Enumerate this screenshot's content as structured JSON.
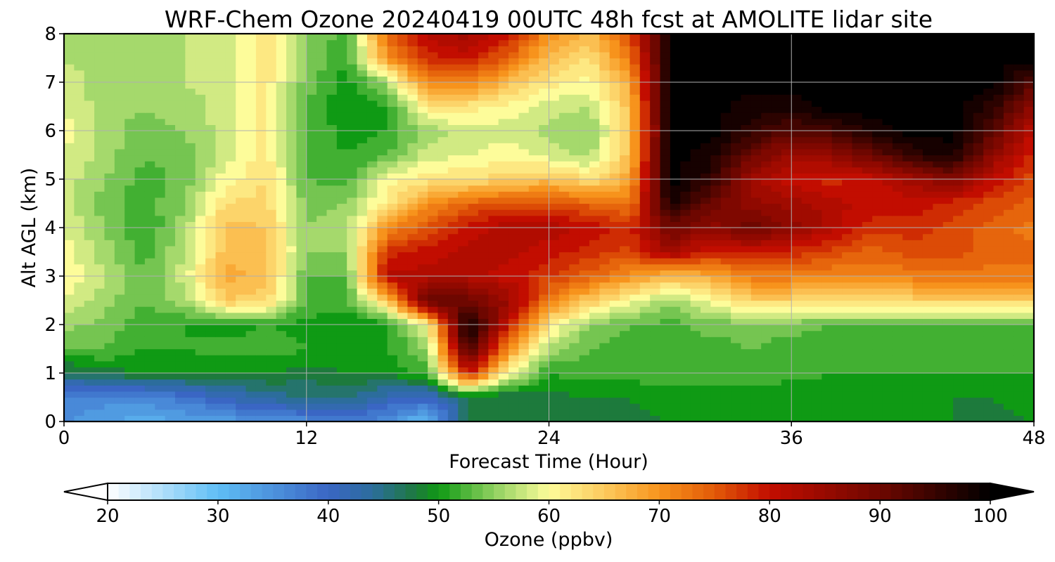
{
  "chart_data": {
    "type": "heatmap",
    "title": "WRF-Chem Ozone  20240419 00UTC 48h fcst at AMOLITE lidar site",
    "xlabel": "Forecast Time (Hour)",
    "ylabel": "Alt AGL (km)",
    "xlim": [
      0,
      48
    ],
    "ylim": [
      0,
      8
    ],
    "xticks": [
      "0",
      "12",
      "24",
      "36",
      "48"
    ],
    "yticks": [
      "0",
      "1",
      "2",
      "3",
      "4",
      "5",
      "6",
      "7",
      "8"
    ],
    "grid": true,
    "z_unit": "ppbv",
    "x": [
      0,
      2,
      4,
      6,
      8,
      10,
      12,
      14,
      16,
      18,
      20,
      22,
      24,
      26,
      28,
      30,
      32,
      34,
      36,
      38,
      40,
      42,
      44,
      46,
      48
    ],
    "y": [
      0.0,
      0.5,
      1.0,
      1.5,
      2.0,
      2.5,
      3.0,
      3.5,
      4.0,
      4.5,
      5.0,
      5.5,
      6.0,
      6.5,
      7.0,
      7.5,
      8.0
    ],
    "z": [
      [
        35,
        33,
        32,
        33,
        34,
        34,
        36,
        38,
        35,
        30,
        47,
        47,
        47,
        48,
        48,
        49,
        50,
        50,
        49,
        49,
        49,
        49,
        49,
        48,
        49
      ],
      [
        37,
        36,
        36,
        38,
        41,
        44,
        45,
        45,
        42,
        40,
        47,
        47,
        48,
        49,
        49,
        50,
        50,
        50,
        49,
        50,
        50,
        50,
        49,
        49,
        50
      ],
      [
        46,
        48,
        49,
        49,
        49,
        49,
        48,
        49,
        49,
        52,
        80,
        60,
        51,
        52,
        52,
        52,
        52,
        52,
        52,
        51,
        51,
        51,
        51,
        51,
        51
      ],
      [
        53,
        53,
        51,
        51,
        52,
        52,
        51,
        50,
        51,
        55,
        95,
        70,
        56,
        53,
        52,
        51,
        52,
        53,
        52,
        51,
        51,
        51,
        51,
        51,
        51
      ],
      [
        56,
        54,
        52,
        51,
        50,
        51,
        50,
        49,
        50,
        60,
        100,
        80,
        62,
        55,
        53,
        52,
        54,
        54,
        54,
        53,
        53,
        53,
        53,
        53,
        53
      ],
      [
        59,
        56,
        53,
        56,
        65,
        64,
        53,
        52,
        65,
        92,
        90,
        85,
        72,
        65,
        60,
        56,
        60,
        64,
        64,
        64,
        64,
        64,
        64,
        64,
        64
      ],
      [
        61,
        57,
        53,
        58,
        68,
        66,
        53,
        53,
        82,
        82,
        82,
        80,
        77,
        74,
        70,
        66,
        68,
        72,
        72,
        71,
        71,
        72,
        72,
        72,
        72
      ],
      [
        60,
        56,
        52,
        57,
        66,
        66,
        55,
        55,
        78,
        80,
        82,
        82,
        80,
        78,
        76,
        84,
        78,
        80,
        78,
        76,
        74,
        76,
        76,
        74,
        74
      ],
      [
        59,
        55,
        51,
        56,
        66,
        65,
        55,
        56,
        70,
        76,
        80,
        82,
        82,
        80,
        78,
        90,
        86,
        90,
        86,
        82,
        78,
        78,
        76,
        74,
        72
      ],
      [
        58,
        54,
        52,
        55,
        63,
        64,
        54,
        55,
        62,
        70,
        74,
        76,
        76,
        74,
        72,
        98,
        90,
        86,
        84,
        82,
        80,
        80,
        78,
        76,
        74
      ],
      [
        58,
        55,
        52,
        54,
        60,
        63,
        53,
        52,
        60,
        62,
        63,
        64,
        66,
        63,
        68,
        100,
        96,
        84,
        80,
        78,
        80,
        84,
        88,
        80,
        76
      ],
      [
        59,
        56,
        53,
        54,
        58,
        62,
        53,
        51,
        53,
        58,
        59,
        60,
        58,
        56,
        66,
        100,
        98,
        90,
        84,
        86,
        90,
        96,
        98,
        86,
        78
      ],
      [
        60,
        56,
        54,
        55,
        58,
        62,
        53,
        50,
        51,
        56,
        58,
        58,
        56,
        55,
        65,
        100,
        100,
        96,
        92,
        94,
        98,
        100,
        100,
        92,
        80
      ],
      [
        59,
        56,
        55,
        56,
        58,
        62,
        53,
        49,
        51,
        62,
        62,
        60,
        58,
        57,
        66,
        100,
        100,
        98,
        98,
        100,
        100,
        100,
        100,
        96,
        86
      ],
      [
        58,
        56,
        56,
        57,
        58,
        62,
        54,
        50,
        56,
        72,
        72,
        66,
        62,
        60,
        68,
        100,
        100,
        100,
        100,
        100,
        100,
        100,
        100,
        100,
        92
      ],
      [
        57,
        56,
        56,
        57,
        58,
        62,
        55,
        51,
        70,
        78,
        80,
        74,
        66,
        63,
        72,
        100,
        100,
        100,
        100,
        100,
        100,
        100,
        100,
        100,
        100
      ],
      [
        57,
        56,
        57,
        57,
        58,
        62,
        55,
        52,
        74,
        82,
        84,
        80,
        70,
        66,
        76,
        100,
        100,
        100,
        100,
        100,
        100,
        100,
        100,
        100,
        100
      ]
    ],
    "colorbar": {
      "label": "Ozone  (ppbv)",
      "min": 20,
      "max": 100,
      "ticks": [
        "20",
        "30",
        "40",
        "50",
        "60",
        "70",
        "80",
        "90",
        "100"
      ],
      "extend": "both"
    },
    "colormap": [
      {
        "v": 20,
        "c": "#ffffff"
      },
      {
        "v": 30,
        "c": "#5fbef5"
      },
      {
        "v": 40,
        "c": "#3a66c4"
      },
      {
        "v": 44,
        "c": "#2c6d9c"
      },
      {
        "v": 48,
        "c": "#1d7a3c"
      },
      {
        "v": 50,
        "c": "#0f9a14"
      },
      {
        "v": 55,
        "c": "#8fd060"
      },
      {
        "v": 60,
        "c": "#fdfc9a"
      },
      {
        "v": 65,
        "c": "#fcca5e"
      },
      {
        "v": 70,
        "c": "#f7931c"
      },
      {
        "v": 75,
        "c": "#e25a08"
      },
      {
        "v": 80,
        "c": "#c20d00"
      },
      {
        "v": 90,
        "c": "#6e0700"
      },
      {
        "v": 100,
        "c": "#000000"
      }
    ]
  }
}
